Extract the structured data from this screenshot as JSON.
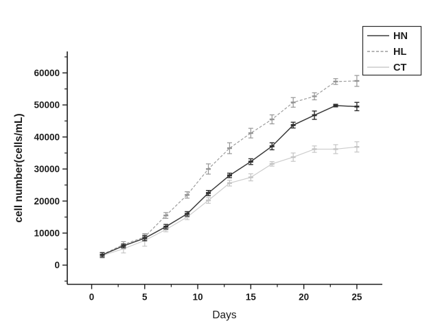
{
  "figure": {
    "background_color": "#ffffff",
    "frame_color": "#1a1a1a"
  },
  "chart_data": {
    "type": "line",
    "title": "",
    "xlabel": "Days",
    "ylabel": "cell number(cells/mL)",
    "x": [
      1,
      3,
      5,
      7,
      9,
      11,
      13,
      15,
      17,
      19,
      21,
      23,
      25
    ],
    "series": [
      {
        "name": "HN",
        "color": "#3b3b3b",
        "marker_color": "#2e2e2e",
        "line_style": "solid",
        "values": [
          3200,
          6000,
          8400,
          12000,
          16000,
          22500,
          28000,
          32300,
          37100,
          43700,
          46800,
          49800,
          49500
        ],
        "errors": [
          700,
          600,
          800,
          700,
          700,
          800,
          700,
          900,
          1100,
          900,
          1300,
          400,
          1300
        ]
      },
      {
        "name": "HL",
        "color": "#9b9b9b",
        "marker_color": "#949494",
        "line_style": "dashed",
        "values": [
          3300,
          6400,
          8800,
          15500,
          21900,
          30000,
          36500,
          41200,
          45500,
          50800,
          52700,
          57300,
          57500
        ],
        "errors": [
          600,
          900,
          1000,
          900,
          1000,
          1600,
          1700,
          1500,
          1400,
          1500,
          1100,
          900,
          1700
        ]
      },
      {
        "name": "CT",
        "color": "#cccccc",
        "marker_color": "#c4c4c4",
        "line_style": "solid",
        "values": [
          3000,
          5100,
          7700,
          11100,
          15000,
          20200,
          25600,
          27400,
          31600,
          33700,
          36200,
          36200,
          36900
        ],
        "errors": [
          800,
          1300,
          1800,
          700,
          800,
          900,
          900,
          1100,
          700,
          1300,
          1000,
          1400,
          1600
        ]
      }
    ],
    "x_ticks": [
      0,
      5,
      10,
      15,
      20,
      25
    ],
    "x_minor_step": 2.5,
    "y_ticks": [
      0,
      10000,
      20000,
      30000,
      40000,
      50000,
      60000
    ],
    "y_minor_step": 5000,
    "xlim": [
      -2.3,
      27.4
    ],
    "ylim": [
      -6000,
      66700
    ],
    "grid": false,
    "legend_position": "top-right",
    "legend_entries": [
      "HN",
      "HL",
      "CT"
    ]
  }
}
